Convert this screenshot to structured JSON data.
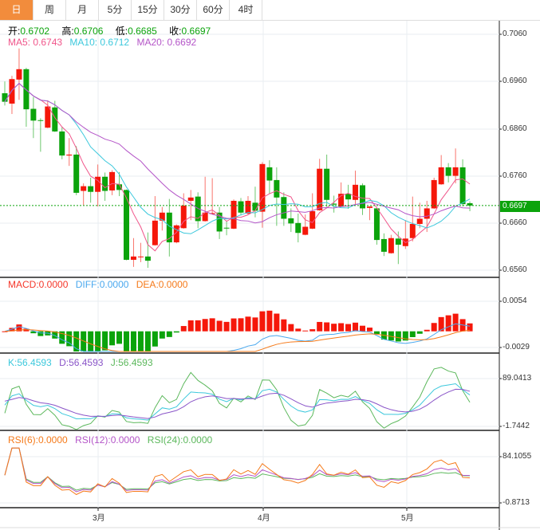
{
  "tabs": [
    "日",
    "周",
    "月",
    "5分",
    "15分",
    "30分",
    "60分",
    "4时"
  ],
  "active_tab": 0,
  "ohlc_legend": {
    "open_label": "开:",
    "open": "0.6702",
    "high_label": "高:",
    "high": "0.6706",
    "low_label": "低:",
    "low": "0.6685",
    "close_label": "收:",
    "close": "0.6697"
  },
  "ma_legend": {
    "ma5": "MA5: 0.6743",
    "ma10": "MA10: 0.6712",
    "ma20": "MA20: 0.6692"
  },
  "macd_legend": {
    "macd": "MACD:0.0000",
    "diff": "DIFF:0.0000",
    "dea": "DEA:0.0000"
  },
  "kdj_legend": {
    "k": "K:56.4593",
    "d": "D:56.4593",
    "j": "J:56.4593"
  },
  "rsi_legend": {
    "rsi6": "RSI(6):0.0000",
    "rsi12": "RSI(12):0.0000",
    "rsi24": "RSI(24):0.0000"
  },
  "price_axis": [
    "0.7060",
    "0.6960",
    "0.6860",
    "0.6760",
    "0.6660",
    "0.6560"
  ],
  "current_price": "0.6697",
  "macd_axis": [
    "0.0054",
    "-0.0029"
  ],
  "kdj_axis": [
    "89.0413",
    "-1.7442"
  ],
  "rsi_axis": [
    "84.1055",
    "-0.8713"
  ],
  "x_labels": [
    "3月",
    "4月",
    "5月"
  ],
  "colors": {
    "up": "#f5170a",
    "down": "#0ba30b",
    "ma5": "#f0558a",
    "ma10": "#3cc8dc",
    "ma20": "#b455c8",
    "tab_active": "#f28c3c",
    "diff": "#4aa8ee",
    "dea": "#f57a1a",
    "k": "#3cc8dc",
    "d": "#8a55c8",
    "j": "#5cb85c",
    "rsi6": "#f57a1a",
    "rsi12": "#b455c8",
    "rsi24": "#5cb85c"
  },
  "chart_data": {
    "type": "candlestick",
    "fields": [
      "open",
      "high",
      "low",
      "close"
    ],
    "yrange": [
      0.656,
      0.706
    ],
    "x_month_ticks": [
      {
        "label": "3月",
        "index": 13
      },
      {
        "label": "4月",
        "index": 36
      },
      {
        "label": "5月",
        "index": 56
      }
    ],
    "candles": [
      [
        0.6935,
        0.696,
        0.6909,
        0.6917
      ],
      [
        0.6913,
        0.6972,
        0.6891,
        0.6965
      ],
      [
        0.6964,
        0.703,
        0.6921,
        0.6986
      ],
      [
        0.6986,
        0.6989,
        0.6864,
        0.6901
      ],
      [
        0.6902,
        0.6927,
        0.684,
        0.6877
      ],
      [
        0.6878,
        0.6882,
        0.6811,
        0.6877
      ],
      [
        0.6862,
        0.692,
        0.6861,
        0.6907
      ],
      [
        0.6905,
        0.6919,
        0.6853,
        0.6854
      ],
      [
        0.6854,
        0.6863,
        0.6795,
        0.6803
      ],
      [
        0.6803,
        0.684,
        0.6781,
        0.6805
      ],
      [
        0.6805,
        0.6823,
        0.6719,
        0.6724
      ],
      [
        0.6728,
        0.6744,
        0.6698,
        0.6738
      ],
      [
        0.6738,
        0.6756,
        0.6703,
        0.6726
      ],
      [
        0.6726,
        0.6784,
        0.6695,
        0.6758
      ],
      [
        0.6758,
        0.6767,
        0.6707,
        0.6728
      ],
      [
        0.6729,
        0.6772,
        0.6719,
        0.6768
      ],
      [
        0.6742,
        0.6768,
        0.6717,
        0.673
      ],
      [
        0.673,
        0.6731,
        0.6581,
        0.6582
      ],
      [
        0.6582,
        0.6628,
        0.6567,
        0.6589
      ],
      [
        0.6589,
        0.6618,
        0.6577,
        0.6589
      ],
      [
        0.6589,
        0.664,
        0.6565,
        0.658
      ],
      [
        0.6613,
        0.6717,
        0.6612,
        0.6665
      ],
      [
        0.6665,
        0.6694,
        0.6644,
        0.6682
      ],
      [
        0.6682,
        0.6711,
        0.6589,
        0.6619
      ],
      [
        0.6619,
        0.6657,
        0.6617,
        0.6655
      ],
      [
        0.6649,
        0.6723,
        0.6648,
        0.6697
      ],
      [
        0.6707,
        0.673,
        0.6666,
        0.6714
      ],
      [
        0.6716,
        0.6725,
        0.6649,
        0.6664
      ],
      [
        0.6664,
        0.6758,
        0.6663,
        0.6682
      ],
      [
        0.6679,
        0.6755,
        0.6678,
        0.6681
      ],
      [
        0.6682,
        0.6694,
        0.6626,
        0.6642
      ],
      [
        0.665,
        0.6665,
        0.6634,
        0.6649
      ],
      [
        0.6648,
        0.671,
        0.6647,
        0.6707
      ],
      [
        0.6706,
        0.6713,
        0.6676,
        0.6682
      ],
      [
        0.668,
        0.6717,
        0.6678,
        0.6707
      ],
      [
        0.6703,
        0.6737,
        0.6672,
        0.6686
      ],
      [
        0.6684,
        0.6789,
        0.665,
        0.6785
      ],
      [
        0.6778,
        0.6793,
        0.6722,
        0.675
      ],
      [
        0.6751,
        0.6778,
        0.6654,
        0.6714
      ],
      [
        0.6715,
        0.6725,
        0.6654,
        0.6669
      ],
      [
        0.667,
        0.6691,
        0.6641,
        0.6659
      ],
      [
        0.666,
        0.668,
        0.6619,
        0.6639
      ],
      [
        0.6635,
        0.6678,
        0.6634,
        0.6652
      ],
      [
        0.6648,
        0.6723,
        0.6647,
        0.6685
      ],
      [
        0.6687,
        0.6796,
        0.6686,
        0.6775
      ],
      [
        0.6775,
        0.6805,
        0.6694,
        0.6709
      ],
      [
        0.6701,
        0.6718,
        0.6682,
        0.6699
      ],
      [
        0.6695,
        0.6746,
        0.6694,
        0.6722
      ],
      [
        0.6722,
        0.6741,
        0.669,
        0.671
      ],
      [
        0.6709,
        0.6771,
        0.67,
        0.6741
      ],
      [
        0.674,
        0.6744,
        0.6677,
        0.6691
      ],
      [
        0.6692,
        0.6695,
        0.6666,
        0.6695
      ],
      [
        0.6691,
        0.6692,
        0.6614,
        0.6624
      ],
      [
        0.6626,
        0.6638,
        0.659,
        0.6599
      ],
      [
        0.6596,
        0.6635,
        0.6595,
        0.6628
      ],
      [
        0.6627,
        0.6642,
        0.6573,
        0.6614
      ],
      [
        0.6611,
        0.6666,
        0.6605,
        0.6627
      ],
      [
        0.6628,
        0.6716,
        0.6621,
        0.6658
      ],
      [
        0.6658,
        0.6703,
        0.6649,
        0.6669
      ],
      [
        0.6669,
        0.6707,
        0.6641,
        0.6691
      ],
      [
        0.6691,
        0.6756,
        0.669,
        0.6751
      ],
      [
        0.6742,
        0.6804,
        0.6741,
        0.6778
      ],
      [
        0.6778,
        0.6787,
        0.6746,
        0.676
      ],
      [
        0.676,
        0.6818,
        0.6744,
        0.6778
      ],
      [
        0.6778,
        0.6795,
        0.6695,
        0.67
      ],
      [
        0.6702,
        0.6706,
        0.6685,
        0.6697
      ]
    ]
  }
}
